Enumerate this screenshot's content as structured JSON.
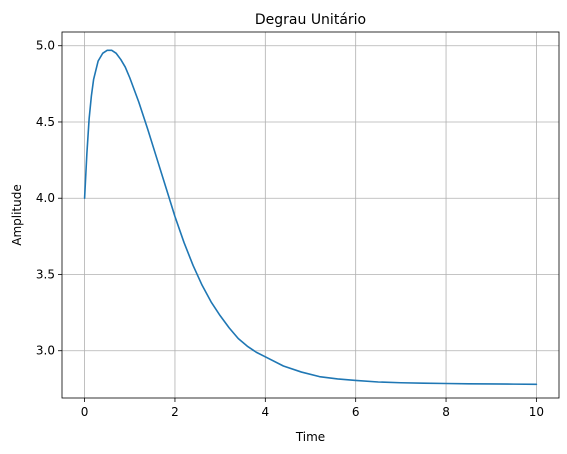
{
  "chart_data": {
    "type": "line",
    "title": "Degrau Unitário",
    "xlabel": "Time",
    "ylabel": "Amplitude",
    "xlim": [
      -0.5,
      10.5
    ],
    "ylim": [
      2.69,
      5.09
    ],
    "xticks": [
      0,
      2,
      4,
      6,
      8,
      10
    ],
    "xtick_labels": [
      "0",
      "2",
      "4",
      "6",
      "8",
      "10"
    ],
    "yticks": [
      3.0,
      3.5,
      4.0,
      4.5,
      5.0
    ],
    "ytick_labels": [
      "3.0",
      "3.5",
      "4.0",
      "4.5",
      "5.0"
    ],
    "grid": true,
    "series_color": "#1f77b4",
    "series": [
      {
        "x": [
          0,
          0.05,
          0.1,
          0.15,
          0.2,
          0.3,
          0.4,
          0.5,
          0.6,
          0.7,
          0.8,
          0.9,
          1.0,
          1.2,
          1.4,
          1.6,
          1.8,
          2.0,
          2.2,
          2.4,
          2.6,
          2.8,
          3.0,
          3.2,
          3.4,
          3.6,
          3.8,
          4.0,
          4.4,
          4.8,
          5.2,
          5.6,
          6.0,
          6.5,
          7.0,
          7.5,
          8.0,
          8.5,
          9.0,
          9.5,
          10.0
        ],
        "y": [
          4.0,
          4.29,
          4.52,
          4.67,
          4.78,
          4.9,
          4.95,
          4.97,
          4.97,
          4.95,
          4.91,
          4.86,
          4.79,
          4.63,
          4.45,
          4.26,
          4.07,
          3.88,
          3.71,
          3.56,
          3.43,
          3.32,
          3.23,
          3.15,
          3.08,
          3.03,
          2.99,
          2.96,
          2.9,
          2.86,
          2.83,
          2.815,
          2.805,
          2.795,
          2.79,
          2.787,
          2.785,
          2.783,
          2.782,
          2.781,
          2.78
        ]
      }
    ]
  }
}
